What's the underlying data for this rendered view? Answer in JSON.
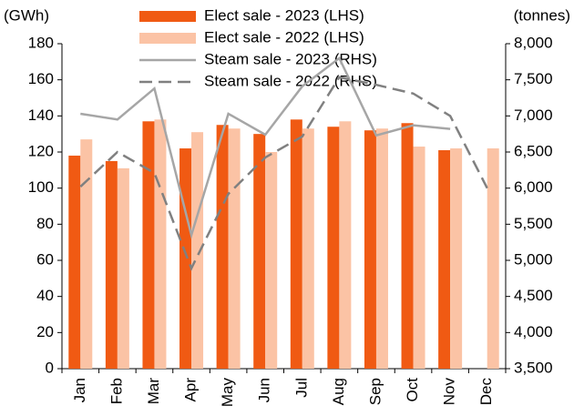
{
  "chart_data": {
    "type": "bar_line",
    "y_label": "(GWh)",
    "y2_label": "(tonnes)",
    "categories": [
      "Jan",
      "Feb",
      "Mar",
      "Apr",
      "May",
      "Jun",
      "Jul",
      "Aug",
      "Sep",
      "Oct",
      "Nov",
      "Dec"
    ],
    "series": [
      {
        "name": "Elect sale - 2023 (LHS)",
        "type": "bar",
        "color": "#f05a13",
        "values": [
          118,
          115,
          137,
          122,
          135,
          130,
          138,
          134,
          132,
          136,
          121,
          null
        ]
      },
      {
        "name": "Elect sale - 2022 (LHS)",
        "type": "bar",
        "color": "#fbc3a5",
        "values": [
          127,
          111,
          138,
          131,
          133,
          120,
          133,
          137,
          133,
          123,
          122,
          122
        ]
      },
      {
        "name": "Steam sale - 2023 (RHS)",
        "type": "line",
        "axis": "y2",
        "color": "#a6a6a6",
        "dash": false,
        "values": [
          7030,
          6950,
          7380,
          5350,
          7030,
          6740,
          7410,
          7800,
          6730,
          6870,
          6820,
          null
        ]
      },
      {
        "name": "Steam sale - 2022 (RHS)",
        "type": "line",
        "axis": "y2",
        "color": "#808080",
        "dash": true,
        "values": [
          6020,
          6500,
          6210,
          4890,
          5920,
          6425,
          6715,
          7535,
          7430,
          7310,
          7000,
          6000
        ]
      }
    ],
    "ylim": [
      0,
      180
    ],
    "yticks": [
      0,
      20,
      40,
      60,
      80,
      100,
      120,
      140,
      160,
      180
    ],
    "y2lim": [
      3500,
      8000
    ],
    "y2ticks": [
      {
        "value": 3500,
        "label": "3,500"
      },
      {
        "value": 4000,
        "label": "4,000"
      },
      {
        "value": 4500,
        "label": "4,500"
      },
      {
        "value": 5000,
        "label": "5,000"
      },
      {
        "value": 5500,
        "label": "5,500"
      },
      {
        "value": 6000,
        "label": "6,000"
      },
      {
        "value": 6500,
        "label": "6,500"
      },
      {
        "value": 7000,
        "label": "7,000"
      },
      {
        "value": 7500,
        "label": "7,500"
      },
      {
        "value": 8000,
        "label": "8,000"
      }
    ],
    "legend": "top",
    "grid": false
  }
}
